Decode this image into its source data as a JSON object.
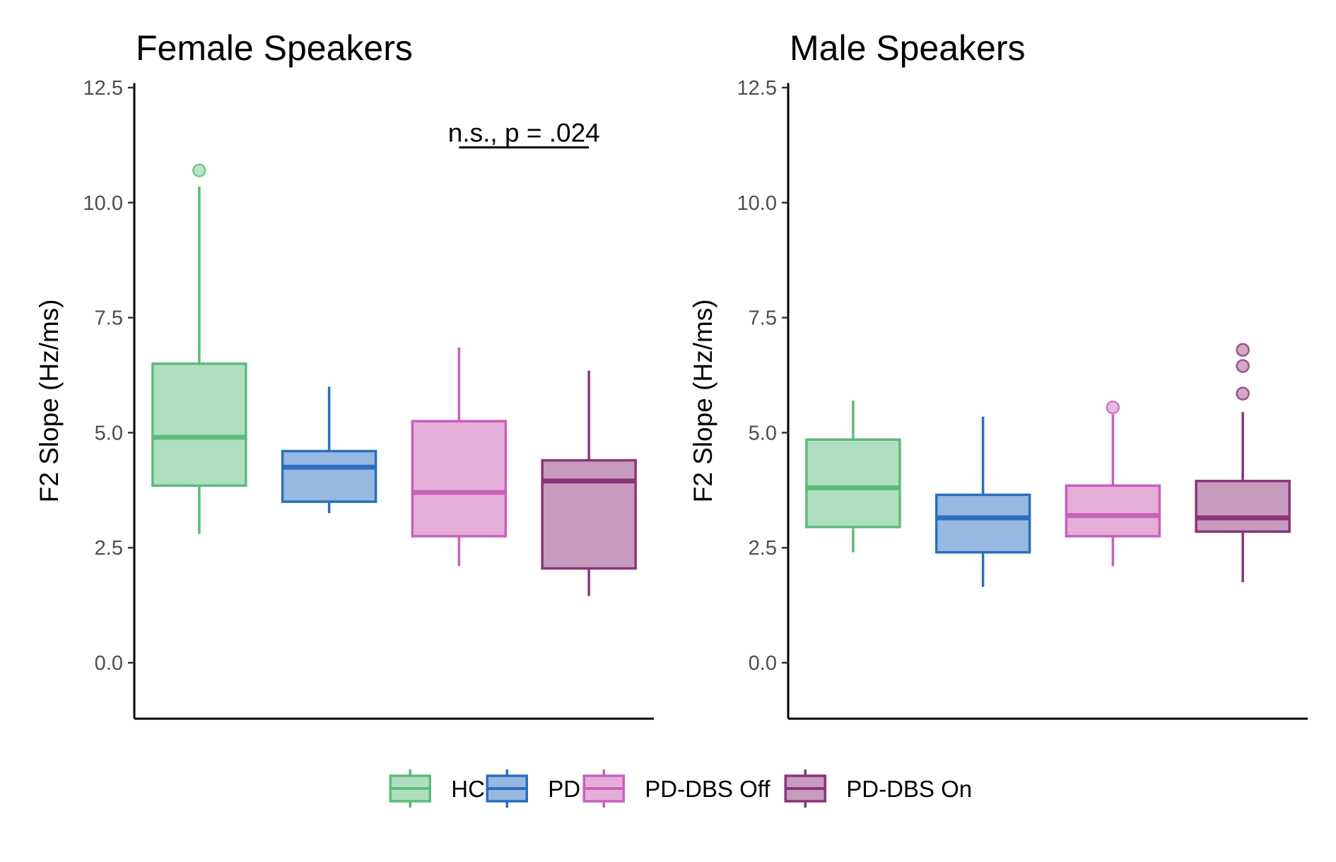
{
  "chart_data": [
    {
      "type": "box",
      "title": "Female Speakers",
      "xlabel": "",
      "ylabel": "F2 Slope (Hz/ms)",
      "ylim": [
        -0.6,
        12.6
      ],
      "yticks": [
        "0.0",
        "2.5",
        "5.0",
        "7.5",
        "10.0",
        "12.5"
      ],
      "grid": false,
      "categories": [
        "HC",
        "PD",
        "PD-DBS Off",
        "PD-DBS On"
      ],
      "boxes": [
        {
          "group": "HC",
          "whisker_low": 2.8,
          "q1": 3.85,
          "median": 4.9,
          "q3": 6.5,
          "whisker_high": 10.35,
          "outliers": [
            10.7
          ]
        },
        {
          "group": "PD",
          "whisker_low": 3.25,
          "q1": 3.5,
          "median": 4.25,
          "q3": 4.6,
          "whisker_high": 6.0,
          "outliers": []
        },
        {
          "group": "PD-DBS Off",
          "whisker_low": 2.1,
          "q1": 2.75,
          "median": 3.7,
          "q3": 5.25,
          "whisker_high": 6.85,
          "outliers": []
        },
        {
          "group": "PD-DBS On",
          "whisker_low": 1.45,
          "q1": 2.05,
          "median": 3.95,
          "q3": 4.4,
          "whisker_high": 6.35,
          "outliers": []
        }
      ],
      "annotation": {
        "text": "n.s., p = .024",
        "from": "PD-DBS Off",
        "to": "PD-DBS On",
        "y": 11.2
      }
    },
    {
      "type": "box",
      "title": "Male Speakers",
      "xlabel": "",
      "ylabel": "F2 Slope (Hz/ms)",
      "ylim": [
        -0.6,
        12.6
      ],
      "yticks": [
        "0.0",
        "2.5",
        "5.0",
        "7.5",
        "10.0",
        "12.5"
      ],
      "grid": false,
      "categories": [
        "HC",
        "PD",
        "PD-DBS Off",
        "PD-DBS On"
      ],
      "boxes": [
        {
          "group": "HC",
          "whisker_low": 2.4,
          "q1": 2.95,
          "median": 3.8,
          "q3": 4.85,
          "whisker_high": 5.7,
          "outliers": []
        },
        {
          "group": "PD",
          "whisker_low": 1.65,
          "q1": 2.4,
          "median": 3.15,
          "q3": 3.65,
          "whisker_high": 5.35,
          "outliers": []
        },
        {
          "group": "PD-DBS Off",
          "whisker_low": 2.1,
          "q1": 2.75,
          "median": 3.2,
          "q3": 3.85,
          "whisker_high": 5.4,
          "outliers": [
            5.55
          ]
        },
        {
          "group": "PD-DBS On",
          "whisker_low": 1.75,
          "q1": 2.85,
          "median": 3.15,
          "q3": 3.95,
          "whisker_high": 5.45,
          "outliers": [
            5.85,
            6.45,
            6.8
          ]
        }
      ],
      "annotation": null
    }
  ],
  "legend": {
    "position": "bottom",
    "items": [
      {
        "label": "HC",
        "stroke": "#5dbb7a",
        "fill": "#b0dfbf"
      },
      {
        "label": "PD",
        "stroke": "#2a6fbe",
        "fill": "#97b8e0"
      },
      {
        "label": "PD-DBS Off",
        "stroke": "#c95fbd",
        "fill": "#e5aed9"
      },
      {
        "label": "PD-DBS On",
        "stroke": "#8a3479",
        "fill": "#c79bbd"
      }
    ]
  }
}
